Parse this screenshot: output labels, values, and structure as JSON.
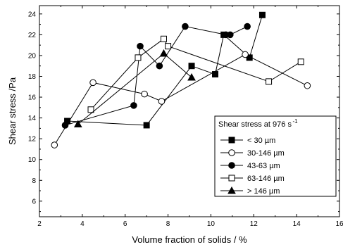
{
  "chart_data": {
    "type": "line",
    "xlabel": "Volume fraction of solids / %",
    "ylabel": "Shear stress /Pa",
    "xlim": [
      2,
      16
    ],
    "ylim": [
      4.5,
      24.8
    ],
    "xticks": [
      2,
      4,
      6,
      8,
      10,
      12,
      14,
      16
    ],
    "yticks": [
      6,
      8,
      10,
      12,
      14,
      16,
      18,
      20,
      22,
      24
    ],
    "grid": false,
    "legend": {
      "placement": "bottom-right",
      "title": "Shear stress at 976 s",
      "title_sup": "-1"
    },
    "series": [
      {
        "name": "< 30 µm",
        "marker": "square-filled",
        "points": [
          [
            3.3,
            13.7
          ],
          [
            7.0,
            13.3
          ],
          [
            9.1,
            19.0
          ],
          [
            10.2,
            18.2
          ],
          [
            10.6,
            22.0
          ],
          [
            11.8,
            19.8
          ],
          [
            12.4,
            23.9
          ]
        ]
      },
      {
        "name": "30-146 µm",
        "marker": "circle-open",
        "points": [
          [
            2.7,
            11.4
          ],
          [
            4.5,
            17.4
          ],
          [
            6.9,
            16.3
          ],
          [
            7.7,
            15.6
          ],
          [
            11.6,
            20.1
          ],
          [
            14.5,
            17.1
          ]
        ]
      },
      {
        "name": "43-63 µm",
        "marker": "circle-filled",
        "points": [
          [
            3.2,
            13.3
          ],
          [
            6.4,
            15.2
          ],
          [
            6.7,
            20.9
          ],
          [
            7.6,
            19.0
          ],
          [
            8.8,
            22.8
          ],
          [
            10.7,
            22.0
          ],
          [
            10.9,
            22.0
          ],
          [
            11.7,
            22.8
          ]
        ]
      },
      {
        "name": "63-146 µm",
        "marker": "square-open",
        "points": [
          [
            4.4,
            14.8
          ],
          [
            6.6,
            19.8
          ],
          [
            7.8,
            21.6
          ],
          [
            8.0,
            20.9
          ],
          [
            12.7,
            17.5
          ],
          [
            14.2,
            19.4
          ]
        ]
      },
      {
        "name": "> 146 µm",
        "marker": "triangle-filled",
        "points": [
          [
            3.8,
            13.4
          ],
          [
            7.8,
            20.2
          ],
          [
            9.1,
            17.9
          ]
        ]
      }
    ]
  }
}
